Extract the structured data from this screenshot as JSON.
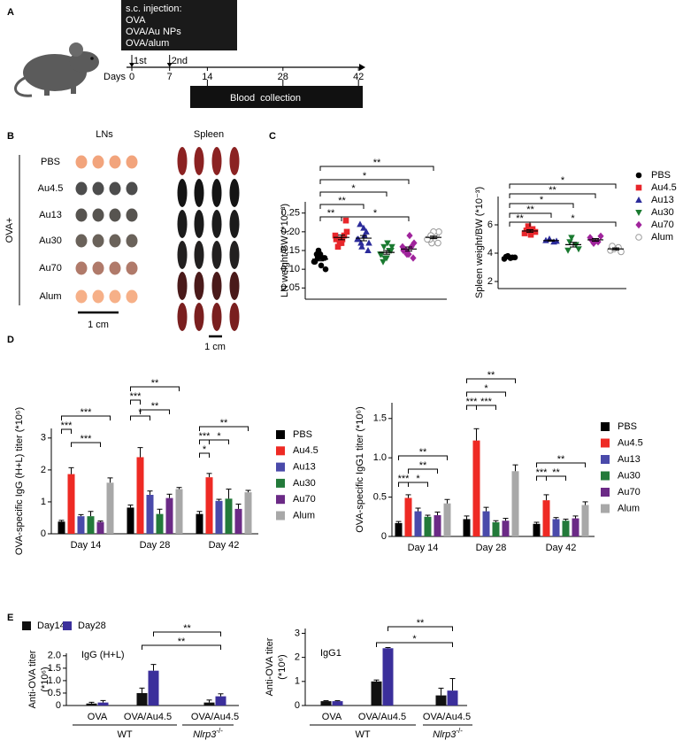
{
  "panel_a": {
    "label": "A",
    "injection_title": "s.c. injection:",
    "injection_items": [
      "OVA",
      "OVA/Au NPs",
      "OVA/alum"
    ],
    "doses": [
      "1st",
      "2nd"
    ],
    "axis_label": "Days",
    "days": [
      0,
      7,
      14,
      28,
      42
    ],
    "bar_label": "Blood  collection"
  },
  "panel_b": {
    "label": "B",
    "columns": [
      "LNs",
      "Spleen"
    ],
    "group_label": "OVA+",
    "rows": [
      "PBS",
      "Au4.5",
      "Au13",
      "Au30",
      "Au70",
      "Alum"
    ],
    "scale_bars": [
      "1 cm",
      "1 cm"
    ]
  },
  "panel_labels": [
    "C",
    "D",
    "E"
  ],
  "chart_data": [
    {
      "type": "dot",
      "ylabel": "LN weight/BW (*10⁻³)",
      "ylim": [
        0.02,
        0.28
      ],
      "yticks": [
        0.05,
        {
          "value": 0.1,
          "label": "0.10"
        },
        0.15,
        {
          "value": 0.2,
          "label": "0.20"
        },
        0.25
      ],
      "series": [
        {
          "color": "#000000",
          "marker": "circle",
          "values": [
            0.12,
            0.13,
            0.15,
            0.1,
            0.14,
            0.11,
            0.13,
            0.12,
            0.14,
            0.13
          ]
        },
        {
          "color": "#e8262b",
          "marker": "square",
          "values": [
            0.18,
            0.19,
            0.17,
            0.2,
            0.16,
            0.18,
            0.23,
            0.19,
            0.17,
            0.18
          ]
        },
        {
          "color": "#2b2b9a",
          "marker": "triangle-up",
          "values": [
            0.18,
            0.2,
            0.16,
            0.17,
            0.22,
            0.19,
            0.15,
            0.18,
            0.21,
            0.17
          ]
        },
        {
          "color": "#1a7a30",
          "marker": "triangle-down",
          "values": [
            0.14,
            0.15,
            0.13,
            0.16,
            0.12,
            0.17,
            0.15,
            0.14,
            0.13,
            0.16
          ]
        },
        {
          "color": "#a0249c",
          "marker": "diamond",
          "values": [
            0.15,
            0.16,
            0.14,
            0.17,
            0.15,
            0.19,
            0.13,
            0.16,
            0.14,
            0.15
          ]
        },
        {
          "color": "#9a9a9a",
          "marker": "open-circle",
          "values": [
            0.18,
            0.19,
            0.17,
            0.2,
            0.18,
            0.19,
            0.17,
            0.18,
            0.2,
            0.19
          ]
        }
      ],
      "annotations": [
        "**",
        "*",
        "*",
        "**",
        "**",
        "*"
      ]
    },
    {
      "type": "dot",
      "ylabel": "Spleen weight/BW (*10⁻³)",
      "ylim": [
        1.5,
        8
      ],
      "yticks": [
        2,
        4,
        6
      ],
      "legend": "right",
      "series": [
        {
          "name": "PBS",
          "color": "#000000",
          "marker": "circle",
          "values": [
            3.6,
            3.7,
            3.8,
            3.7,
            3.75,
            3.65
          ]
        },
        {
          "name": "Au4.5",
          "color": "#e8262b",
          "marker": "square",
          "values": [
            5.4,
            5.7,
            5.9,
            5.5,
            5.6,
            5.3
          ]
        },
        {
          "name": "Au13",
          "color": "#2b2b9a",
          "marker": "triangle-up",
          "values": [
            4.9,
            4.8,
            5.0,
            4.85
          ]
        },
        {
          "name": "Au30",
          "color": "#1a7a30",
          "marker": "triangle-down",
          "values": [
            4.2,
            4.6,
            5.1,
            4.3,
            4.8
          ]
        },
        {
          "name": "Au70",
          "color": "#a0249c",
          "marker": "diamond",
          "values": [
            5.1,
            4.8,
            4.7,
            5.2,
            4.9
          ]
        },
        {
          "name": "Alum",
          "color": "#9a9a9a",
          "marker": "open-circle",
          "values": [
            4.2,
            4.4,
            4.3,
            4.1,
            4.5
          ]
        }
      ],
      "annotations": [
        "*",
        "**",
        "*",
        "**",
        "**",
        "*"
      ]
    },
    {
      "type": "bar",
      "ylabel": "OVA-specific IgG (H+L) titer (*10⁶)",
      "categories": [
        "Day 14",
        "Day 28",
        "Day 42"
      ],
      "ylim": [
        0,
        3.3
      ],
      "yticks": [
        0,
        1,
        2,
        3
      ],
      "legend": "right",
      "series": [
        {
          "name": "PBS",
          "color": "#000000",
          "values": [
            0.38,
            0.82,
            0.62
          ],
          "errors": [
            0.04,
            0.08,
            0.08
          ]
        },
        {
          "name": "Au4.5",
          "color": "#ee2a24",
          "values": [
            1.87,
            2.4,
            1.77
          ],
          "errors": [
            0.2,
            0.3,
            0.12
          ]
        },
        {
          "name": "Au13",
          "color": "#4a4aaa",
          "values": [
            0.55,
            1.22,
            1.03
          ],
          "errors": [
            0.05,
            0.12,
            0.05
          ]
        },
        {
          "name": "Au30",
          "color": "#237a3a",
          "values": [
            0.55,
            0.62,
            1.1
          ],
          "errors": [
            0.15,
            0.15,
            0.3
          ]
        },
        {
          "name": "Au70",
          "color": "#6b2a86",
          "values": [
            0.37,
            1.12,
            0.78
          ],
          "errors": [
            0.03,
            0.12,
            0.15
          ]
        },
        {
          "name": "Alum",
          "color": "#a8a8a8",
          "values": [
            1.6,
            1.4,
            1.3
          ],
          "errors": [
            0.15,
            0.05,
            0.06
          ]
        }
      ],
      "annotations": [
        "***",
        "***",
        "***",
        "**",
        "***",
        "*",
        "**",
        "**",
        "***",
        "*",
        "*"
      ]
    },
    {
      "type": "bar",
      "ylabel": "OVA-specific IgG1 titer (*10⁶)",
      "categories": [
        "Day 14",
        "Day 28",
        "Day 42"
      ],
      "ylim": [
        0,
        1.7
      ],
      "yticks": [
        0,
        0.5,
        {
          "value": 1,
          "label": "1.0"
        },
        1.5
      ],
      "legend": "right",
      "series": [
        {
          "name": "PBS",
          "color": "#000000",
          "values": [
            0.17,
            0.22,
            0.16
          ],
          "errors": [
            0.02,
            0.04,
            0.02
          ]
        },
        {
          "name": "Au4.5",
          "color": "#ee2a24",
          "values": [
            0.49,
            1.22,
            0.46
          ],
          "errors": [
            0.04,
            0.15,
            0.07
          ]
        },
        {
          "name": "Au13",
          "color": "#4a4aaa",
          "values": [
            0.32,
            0.32,
            0.22
          ],
          "errors": [
            0.04,
            0.05,
            0.02
          ]
        },
        {
          "name": "Au30",
          "color": "#237a3a",
          "values": [
            0.25,
            0.18,
            0.2
          ],
          "errors": [
            0.02,
            0.02,
            0.02
          ]
        },
        {
          "name": "Au70",
          "color": "#6b2a86",
          "values": [
            0.27,
            0.2,
            0.23
          ],
          "errors": [
            0.04,
            0.03,
            0.03
          ]
        },
        {
          "name": "Alum",
          "color": "#a8a8a8",
          "values": [
            0.42,
            0.83,
            0.4
          ],
          "errors": [
            0.05,
            0.08,
            0.04
          ]
        }
      ],
      "annotations": [
        "**",
        "**",
        "***",
        "*",
        "**",
        "*",
        "***",
        "***",
        "**",
        "***",
        "**"
      ]
    },
    {
      "type": "bar",
      "title": "IgG (H+L)",
      "ylabel": [
        "Anti-OVA titer",
        "(*10⁶)"
      ],
      "groups": [
        {
          "label": "WT",
          "categories": [
            "OVA",
            "OVA/Au4.5"
          ]
        },
        {
          "label": "Nlrp3",
          "superscript": "-/-",
          "categories": [
            "OVA/Au4.5"
          ]
        }
      ],
      "ylim": [
        0,
        2.1
      ],
      "yticks": [
        0,
        0.5,
        {
          "value": 1,
          "label": "1.0"
        },
        1.5,
        {
          "value": 2,
          "label": "2.0"
        }
      ],
      "legend": "top-left",
      "series": [
        {
          "name": "Day14",
          "color": "#111111",
          "values": [
            0.08,
            0.5,
            0.12
          ],
          "errors": [
            0.05,
            0.2,
            0.1
          ]
        },
        {
          "name": "Day28",
          "color": "#3b2f9b",
          "values": [
            0.12,
            1.4,
            0.37
          ],
          "errors": [
            0.08,
            0.25,
            0.1
          ]
        }
      ],
      "annotations": [
        "**",
        "**"
      ]
    },
    {
      "type": "bar",
      "title": "IgG1",
      "ylabel": [
        "Anti-OVA titer",
        "(*10⁶)"
      ],
      "groups": [
        {
          "label": "WT",
          "categories": [
            "OVA",
            "OVA/Au4.5"
          ]
        },
        {
          "label": "Nlrp3",
          "superscript": "-/-",
          "categories": [
            "OVA/Au4.5"
          ]
        }
      ],
      "ylim": [
        0,
        3.2
      ],
      "yticks": [
        0,
        1,
        2,
        3
      ],
      "series": [
        {
          "color": "#111111",
          "values": [
            0.18,
            1.0,
            0.42
          ],
          "errors": [
            0.02,
            0.06,
            0.3
          ]
        },
        {
          "color": "#3b2f9b",
          "values": [
            0.18,
            2.38,
            0.62
          ],
          "errors": [
            0.02,
            0.03,
            0.5
          ]
        }
      ],
      "annotations": [
        "**",
        "*"
      ]
    }
  ]
}
